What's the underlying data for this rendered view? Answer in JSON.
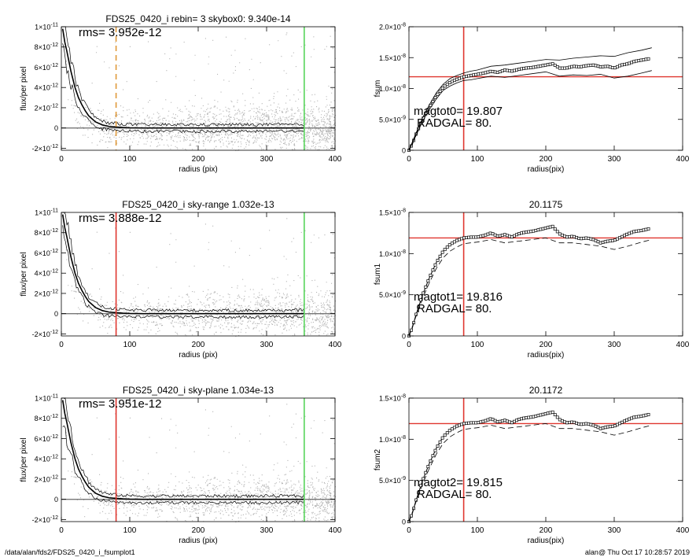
{
  "footer": {
    "left": "/data/alan/fds2/FDS25_0420_i_fsumplot1",
    "right": "alan@  Thu Oct 17 10:28:57 2019"
  },
  "colors": {
    "scatter": "#b4b4b4",
    "red": "#e0362f",
    "green": "#57d45a",
    "orange": "#e09a3a",
    "line": "#000000"
  },
  "chart_data": [
    {
      "id": "flux0",
      "type": "scatter",
      "title": "FDS25_0420_i rebin= 3    skybox0:  9.340e-14",
      "xlabel": "radius (pix)",
      "ylabel": "flux/per pixel",
      "xlim": [
        0,
        400
      ],
      "ylim": [
        -2.2e-12,
        1e-11
      ],
      "xticks": [
        "0",
        "100",
        "200",
        "300",
        "400"
      ],
      "yticks": [
        {
          "v": 1e-11,
          "m": "1×10",
          "e": "-11"
        },
        {
          "v": 8e-12,
          "m": "8×10",
          "e": "-12"
        },
        {
          "v": 6e-12,
          "m": "6×10",
          "e": "-12"
        },
        {
          "v": 4e-12,
          "m": "4×10",
          "e": "-12"
        },
        {
          "v": 2e-12,
          "m": "2×10",
          "e": "-12"
        },
        {
          "v": 0,
          "m": "0",
          "e": ""
        },
        {
          "v": -2e-12,
          "m": "-2×10",
          "e": "-12"
        }
      ],
      "annotation": "rms= 3.952e-12",
      "vlines": [
        {
          "x": 80,
          "color": "orange",
          "style": "dashed"
        },
        {
          "x": 355,
          "color": "green",
          "style": "solid"
        }
      ],
      "profile": {
        "x": [
          2,
          5,
          8,
          11,
          14,
          17,
          20,
          25,
          30,
          35,
          40,
          45,
          50,
          55,
          60,
          70,
          80,
          90,
          100,
          120,
          140,
          160,
          180,
          200,
          220,
          240,
          260,
          280,
          300,
          320,
          340,
          355
        ],
        "y": [
          9.8e-12,
          8.5e-12,
          7.6e-12,
          6.6e-12,
          5.6e-12,
          4.8e-12,
          4e-12,
          3e-12,
          2.3e-12,
          1.7e-12,
          1.2e-12,
          9e-13,
          6e-13,
          4.5e-13,
          3e-13,
          1.5e-13,
          1e-13,
          5e-14,
          2e-14,
          0,
          0,
          0,
          0,
          0,
          0,
          0,
          0,
          0,
          0,
          0,
          0,
          0
        ]
      }
    },
    {
      "id": "fsum0",
      "type": "line",
      "title": "",
      "xlabel": "radius(pix)",
      "ylabel": "fsum",
      "xlim": [
        0,
        400
      ],
      "ylim": [
        0,
        2e-08
      ],
      "xticks": [
        "0",
        "100",
        "200",
        "300",
        "400"
      ],
      "yticks": [
        {
          "v": 2e-08,
          "m": "2.0×10",
          "e": "-8"
        },
        {
          "v": 1.5e-08,
          "m": "1.5×10",
          "e": "-8"
        },
        {
          "v": 1e-08,
          "m": "1.0×10",
          "e": "-8"
        },
        {
          "v": 5e-09,
          "m": "5.0×10",
          "e": "-9"
        },
        {
          "v": 0,
          "m": "0",
          "e": ""
        }
      ],
      "hline": 1.19e-08,
      "vline": 80,
      "text": [
        "magtot0=  19.807",
        "RADGAL=     80."
      ],
      "series": [
        {
          "x": [
            0,
            5,
            10,
            20,
            30,
            40,
            50,
            60,
            70,
            80,
            90,
            100,
            110,
            120,
            130,
            140,
            150,
            160,
            170,
            180,
            190,
            200,
            210,
            220,
            230,
            240,
            250,
            260,
            270,
            280,
            290,
            300,
            310,
            320,
            330,
            340,
            350
          ],
          "y": [
            0,
            1e-09,
            2.5e-09,
            5e-09,
            7e-09,
            8.8e-09,
            1.02e-08,
            1.1e-08,
            1.15e-08,
            1.19e-08,
            1.21e-08,
            1.23e-08,
            1.25e-08,
            1.28e-08,
            1.26e-08,
            1.3e-08,
            1.28e-08,
            1.31e-08,
            1.33e-08,
            1.34e-08,
            1.36e-08,
            1.38e-08,
            1.4e-08,
            1.33e-08,
            1.33e-08,
            1.36e-08,
            1.35e-08,
            1.37e-08,
            1.38e-08,
            1.35e-08,
            1.36e-08,
            1.33e-08,
            1.38e-08,
            1.4e-08,
            1.44e-08,
            1.46e-08,
            1.48e-08
          ]
        },
        {
          "x": [
            0,
            10,
            20,
            30,
            40,
            50,
            60,
            70,
            80,
            90,
            100,
            120,
            140,
            160,
            180,
            200,
            220,
            240,
            260,
            280,
            300,
            320,
            340,
            355
          ],
          "y": [
            0,
            2.7e-09,
            5.3e-09,
            7.4e-09,
            9.3e-09,
            1.07e-08,
            1.16e-08,
            1.21e-08,
            1.25e-08,
            1.28e-08,
            1.3e-08,
            1.36e-08,
            1.38e-08,
            1.41e-08,
            1.44e-08,
            1.47e-08,
            1.46e-08,
            1.49e-08,
            1.51e-08,
            1.53e-08,
            1.52e-08,
            1.58e-08,
            1.62e-08,
            1.66e-08
          ]
        },
        {
          "x": [
            0,
            10,
            20,
            30,
            40,
            50,
            60,
            70,
            80,
            90,
            100,
            120,
            140,
            160,
            180,
            200,
            220,
            240,
            260,
            280,
            300,
            320,
            340,
            355
          ],
          "y": [
            0,
            2.3e-09,
            4.7e-09,
            6.6e-09,
            8.3e-09,
            9.7e-09,
            1.04e-08,
            1.09e-08,
            1.13e-08,
            1.14e-08,
            1.16e-08,
            1.2e-08,
            1.18e-08,
            1.21e-08,
            1.24e-08,
            1.27e-08,
            1.2e-08,
            1.22e-08,
            1.21e-08,
            1.23e-08,
            1.17e-08,
            1.2e-08,
            1.25e-08,
            1.29e-08
          ]
        }
      ]
    },
    {
      "id": "flux1",
      "type": "scatter",
      "title": "FDS25_0420_i sky-range  1.032e-13",
      "xlabel": "radius (pix)",
      "ylabel": "flux/per pixel",
      "xlim": [
        0,
        400
      ],
      "ylim": [
        -2.2e-12,
        1e-11
      ],
      "xticks": [
        "0",
        "100",
        "200",
        "300",
        "400"
      ],
      "yticks": [
        {
          "v": 1e-11,
          "m": "1×10",
          "e": "-11"
        },
        {
          "v": 8e-12,
          "m": "8×10",
          "e": "-12"
        },
        {
          "v": 6e-12,
          "m": "6×10",
          "e": "-12"
        },
        {
          "v": 4e-12,
          "m": "4×10",
          "e": "-12"
        },
        {
          "v": 2e-12,
          "m": "2×10",
          "e": "-12"
        },
        {
          "v": 0,
          "m": "0",
          "e": ""
        },
        {
          "v": -2e-12,
          "m": "-2×10",
          "e": "-12"
        }
      ],
      "annotation": "rms= 3.888e-12",
      "vlines": [
        {
          "x": 80,
          "color": "red",
          "style": "solid"
        },
        {
          "x": 355,
          "color": "green",
          "style": "solid"
        }
      ],
      "profile": {
        "x": [
          2,
          5,
          8,
          11,
          14,
          17,
          20,
          25,
          30,
          35,
          40,
          45,
          50,
          55,
          60,
          70,
          80,
          90,
          100,
          120,
          140,
          160,
          180,
          200,
          220,
          240,
          260,
          280,
          300,
          320,
          340,
          355
        ],
        "y": [
          9.8e-12,
          8.5e-12,
          7.6e-12,
          6.6e-12,
          5.6e-12,
          4.8e-12,
          4e-12,
          3e-12,
          2.3e-12,
          1.7e-12,
          1.2e-12,
          9e-13,
          6e-13,
          4.5e-13,
          3e-13,
          1.5e-13,
          1e-13,
          5e-14,
          2e-14,
          0,
          0,
          0,
          0,
          0,
          0,
          0,
          0,
          0,
          0,
          0,
          0,
          0
        ]
      }
    },
    {
      "id": "fsum1",
      "type": "line",
      "title": "20.1175",
      "xlabel": "radius(pix)",
      "ylabel": "fsum1",
      "xlim": [
        0,
        400
      ],
      "ylim": [
        0,
        1.5e-08
      ],
      "xticks": [
        "0",
        "100",
        "200",
        "300",
        "400"
      ],
      "yticks": [
        {
          "v": 1.5e-08,
          "m": "1.5×10",
          "e": "-8"
        },
        {
          "v": 1e-08,
          "m": "1.0×10",
          "e": "-8"
        },
        {
          "v": 5e-09,
          "m": "5.0×10",
          "e": "-9"
        },
        {
          "v": 0,
          "m": "0",
          "e": ""
        }
      ],
      "hline": 1.19e-08,
      "vline": 80,
      "text": [
        "magtot1=  19.816",
        "RADGAL=     80."
      ],
      "series": [
        {
          "x": [
            0,
            5,
            10,
            20,
            30,
            40,
            50,
            60,
            70,
            80,
            90,
            100,
            110,
            120,
            130,
            140,
            150,
            160,
            170,
            180,
            190,
            200,
            210,
            220,
            230,
            240,
            250,
            260,
            270,
            280,
            290,
            300,
            310,
            320,
            330,
            340,
            350
          ],
          "y": [
            0,
            1e-09,
            2.5e-09,
            5e-09,
            7.1e-09,
            8.9e-09,
            1.03e-08,
            1.11e-08,
            1.16e-08,
            1.19e-08,
            1.2e-08,
            1.2e-08,
            1.22e-08,
            1.25e-08,
            1.21e-08,
            1.23e-08,
            1.2e-08,
            1.24e-08,
            1.26e-08,
            1.27e-08,
            1.29e-08,
            1.31e-08,
            1.33e-08,
            1.24e-08,
            1.2e-08,
            1.21e-08,
            1.18e-08,
            1.19e-08,
            1.17e-08,
            1.13e-08,
            1.15e-08,
            1.16e-08,
            1.2e-08,
            1.24e-08,
            1.27e-08,
            1.28e-08,
            1.3e-08
          ]
        },
        {
          "x": [
            0,
            10,
            20,
            30,
            40,
            50,
            60,
            70,
            80,
            90,
            100,
            120,
            140,
            160,
            180,
            200,
            220,
            240,
            260,
            280,
            300,
            320,
            340,
            355
          ],
          "y": [
            0,
            2.3e-09,
            4.6e-09,
            6.5e-09,
            8.2e-09,
            9.5e-09,
            1.03e-08,
            1.08e-08,
            1.12e-08,
            1.13e-08,
            1.14e-08,
            1.17e-08,
            1.13e-08,
            1.15e-08,
            1.17e-08,
            1.19e-08,
            1.13e-08,
            1.13e-08,
            1.11e-08,
            1.09e-08,
            1.05e-08,
            1.09e-08,
            1.14e-08,
            1.17e-08
          ]
        }
      ]
    },
    {
      "id": "flux2",
      "type": "scatter",
      "title": "FDS25_0420_i sky-plane  1.034e-13",
      "xlabel": "radius (pix)",
      "ylabel": "flux/per pixel",
      "xlim": [
        0,
        400
      ],
      "ylim": [
        -2.2e-12,
        1e-11
      ],
      "xticks": [
        "0",
        "100",
        "200",
        "300",
        "400"
      ],
      "yticks": [
        {
          "v": 1e-11,
          "m": "1×10",
          "e": "-11"
        },
        {
          "v": 8e-12,
          "m": "8×10",
          "e": "-12"
        },
        {
          "v": 6e-12,
          "m": "6×10",
          "e": "-12"
        },
        {
          "v": 4e-12,
          "m": "4×10",
          "e": "-12"
        },
        {
          "v": 2e-12,
          "m": "2×10",
          "e": "-12"
        },
        {
          "v": 0,
          "m": "0",
          "e": ""
        },
        {
          "v": -2e-12,
          "m": "-2×10",
          "e": "-12"
        }
      ],
      "annotation": "rms= 3.951e-12",
      "vlines": [
        {
          "x": 80,
          "color": "red",
          "style": "solid"
        },
        {
          "x": 355,
          "color": "green",
          "style": "solid"
        }
      ],
      "profile": {
        "x": [
          2,
          5,
          8,
          11,
          14,
          17,
          20,
          25,
          30,
          35,
          40,
          45,
          50,
          55,
          60,
          70,
          80,
          90,
          100,
          120,
          140,
          160,
          180,
          200,
          220,
          240,
          260,
          280,
          300,
          320,
          340,
          355
        ],
        "y": [
          9.8e-12,
          8.5e-12,
          7.6e-12,
          6.6e-12,
          5.6e-12,
          4.8e-12,
          4e-12,
          3e-12,
          2.3e-12,
          1.7e-12,
          1.2e-12,
          9e-13,
          6e-13,
          4.5e-13,
          3e-13,
          1.5e-13,
          1e-13,
          5e-14,
          2e-14,
          0,
          0,
          0,
          0,
          0,
          0,
          0,
          0,
          0,
          0,
          0,
          0,
          0
        ]
      }
    },
    {
      "id": "fsum2",
      "type": "line",
      "title": "20.1172",
      "xlabel": "radius(pix)",
      "ylabel": "fsum2",
      "xlim": [
        0,
        400
      ],
      "ylim": [
        0,
        1.5e-08
      ],
      "xticks": [
        "0",
        "100",
        "200",
        "300",
        "400"
      ],
      "yticks": [
        {
          "v": 1.5e-08,
          "m": "1.5×10",
          "e": "-8"
        },
        {
          "v": 1e-08,
          "m": "1.0×10",
          "e": "-8"
        },
        {
          "v": 5e-09,
          "m": "5.0×10",
          "e": "-9"
        },
        {
          "v": 0,
          "m": "0",
          "e": ""
        }
      ],
      "hline": 1.19e-08,
      "vline": 80,
      "text": [
        "magtot2=  19.815",
        "RADGAL=     80."
      ],
      "series": [
        {
          "x": [
            0,
            5,
            10,
            20,
            30,
            40,
            50,
            60,
            70,
            80,
            90,
            100,
            110,
            120,
            130,
            140,
            150,
            160,
            170,
            180,
            190,
            200,
            210,
            220,
            230,
            240,
            250,
            260,
            270,
            280,
            290,
            300,
            310,
            320,
            330,
            340,
            350
          ],
          "y": [
            0,
            1e-09,
            2.5e-09,
            5e-09,
            7.1e-09,
            8.9e-09,
            1.03e-08,
            1.11e-08,
            1.16e-08,
            1.19e-08,
            1.2e-08,
            1.2e-08,
            1.22e-08,
            1.25e-08,
            1.21e-08,
            1.23e-08,
            1.2e-08,
            1.24e-08,
            1.26e-08,
            1.27e-08,
            1.29e-08,
            1.31e-08,
            1.33e-08,
            1.24e-08,
            1.2e-08,
            1.21e-08,
            1.18e-08,
            1.19e-08,
            1.17e-08,
            1.13e-08,
            1.15e-08,
            1.16e-08,
            1.2e-08,
            1.24e-08,
            1.27e-08,
            1.28e-08,
            1.3e-08
          ]
        },
        {
          "x": [
            0,
            10,
            20,
            30,
            40,
            50,
            60,
            70,
            80,
            90,
            100,
            120,
            140,
            160,
            180,
            200,
            220,
            240,
            260,
            280,
            300,
            320,
            340,
            355
          ],
          "y": [
            0,
            2.3e-09,
            4.6e-09,
            6.5e-09,
            8.2e-09,
            9.5e-09,
            1.03e-08,
            1.08e-08,
            1.12e-08,
            1.13e-08,
            1.14e-08,
            1.17e-08,
            1.13e-08,
            1.15e-08,
            1.17e-08,
            1.19e-08,
            1.13e-08,
            1.13e-08,
            1.11e-08,
            1.09e-08,
            1.05e-08,
            1.09e-08,
            1.14e-08,
            1.17e-08
          ]
        }
      ]
    }
  ]
}
